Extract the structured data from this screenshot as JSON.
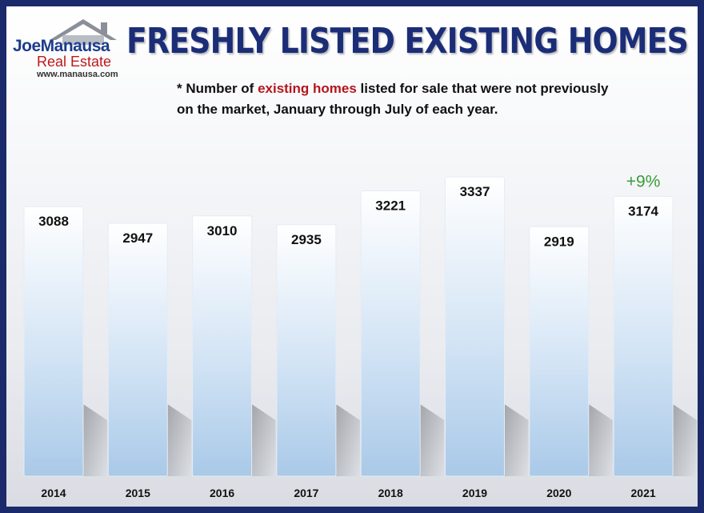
{
  "header": {
    "title": "FRESHLY LISTED EXISTING HOMES",
    "subtitle_prefix": "* Number of ",
    "subtitle_highlight": "existing homes",
    "subtitle_suffix": " listed for sale that were not previously on the market, January through July of each year."
  },
  "logo": {
    "name": "JoeManausa",
    "tagline": "Real Estate",
    "url": "www.manausa.com",
    "house_icon": "house-roof-icon"
  },
  "colors": {
    "frame": "#1b2a6b",
    "title": "#1c2d78",
    "highlight": "#b3161b",
    "annotation": "#3a9c3a"
  },
  "chart_data": {
    "type": "bar",
    "categories": [
      "2014",
      "2015",
      "2016",
      "2017",
      "2018",
      "2019",
      "2020",
      "2021"
    ],
    "values": [
      3088,
      2947,
      3010,
      2935,
      3221,
      3337,
      2919,
      3174
    ],
    "title": "FRESHLY LISTED EXISTING HOMES",
    "xlabel": "",
    "ylabel": "",
    "grid": false,
    "annotations": [
      {
        "category": "2021",
        "text": "+9%"
      }
    ]
  }
}
